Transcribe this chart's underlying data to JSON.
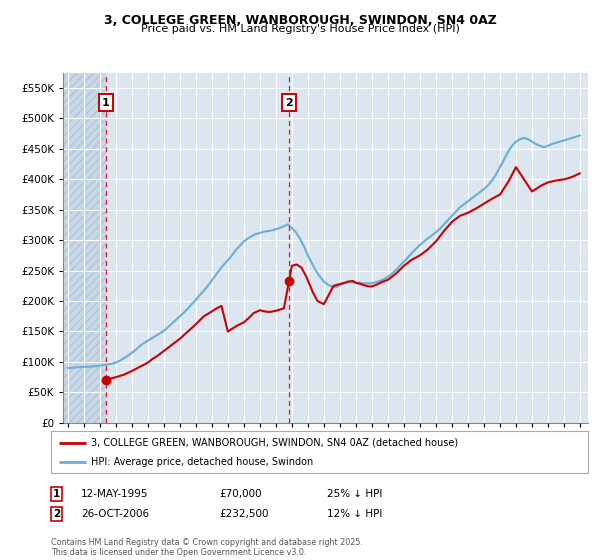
{
  "title1": "3, COLLEGE GREEN, WANBOROUGH, SWINDON, SN4 0AZ",
  "title2": "Price paid vs. HM Land Registry's House Price Index (HPI)",
  "bg_color": "#ffffff",
  "plot_bg_color": "#dce6f1",
  "grid_color": "#ffffff",
  "legend1": "3, COLLEGE GREEN, WANBOROUGH, SWINDON, SN4 0AZ (detached house)",
  "legend2": "HPI: Average price, detached house, Swindon",
  "annotation1_label": "1",
  "annotation1_date": "12-MAY-1995",
  "annotation1_price": "£70,000",
  "annotation1_hpi": "25% ↓ HPI",
  "annotation2_label": "2",
  "annotation2_date": "26-OCT-2006",
  "annotation2_price": "£232,500",
  "annotation2_hpi": "12% ↓ HPI",
  "footer": "Contains HM Land Registry data © Crown copyright and database right 2025.\nThis data is licensed under the Open Government Licence v3.0.",
  "yticks": [
    0,
    50000,
    100000,
    150000,
    200000,
    250000,
    300000,
    350000,
    400000,
    450000,
    500000,
    550000
  ],
  "ylim": [
    0,
    575000
  ],
  "xlim_start": 1992.7,
  "xlim_end": 2025.5,
  "sale1_x": 1995.36,
  "sale1_y": 70000,
  "sale2_x": 2006.82,
  "sale2_y": 232500,
  "hpi_line_color": "#6aaed6",
  "price_line_color": "#cc0000",
  "hpi_x": [
    1993,
    1993.25,
    1993.5,
    1993.75,
    1994,
    1994.25,
    1994.5,
    1994.75,
    1995,
    1995.25,
    1995.5,
    1995.75,
    1996,
    1996.25,
    1996.5,
    1996.75,
    1997,
    1997.25,
    1997.5,
    1997.75,
    1998,
    1998.25,
    1998.5,
    1998.75,
    1999,
    1999.25,
    1999.5,
    1999.75,
    2000,
    2000.25,
    2000.5,
    2000.75,
    2001,
    2001.25,
    2001.5,
    2001.75,
    2002,
    2002.25,
    2002.5,
    2002.75,
    2003,
    2003.25,
    2003.5,
    2003.75,
    2004,
    2004.25,
    2004.5,
    2004.75,
    2005,
    2005.25,
    2005.5,
    2005.75,
    2006,
    2006.25,
    2006.5,
    2006.75,
    2007,
    2007.25,
    2007.5,
    2007.75,
    2008,
    2008.25,
    2008.5,
    2008.75,
    2009,
    2009.25,
    2009.5,
    2009.75,
    2010,
    2010.25,
    2010.5,
    2010.75,
    2011,
    2011.25,
    2011.5,
    2011.75,
    2012,
    2012.25,
    2012.5,
    2012.75,
    2013,
    2013.25,
    2013.5,
    2013.75,
    2014,
    2014.25,
    2014.5,
    2014.75,
    2015,
    2015.25,
    2015.5,
    2015.75,
    2016,
    2016.25,
    2016.5,
    2016.75,
    2017,
    2017.25,
    2017.5,
    2017.75,
    2018,
    2018.25,
    2018.5,
    2018.75,
    2019,
    2019.25,
    2019.5,
    2019.75,
    2020,
    2020.25,
    2020.5,
    2020.75,
    2021,
    2021.25,
    2021.5,
    2021.75,
    2022,
    2022.25,
    2022.5,
    2022.75,
    2023,
    2023.25,
    2023.5,
    2023.75,
    2024,
    2024.25,
    2024.5,
    2024.75,
    2025
  ],
  "hpi_y": [
    90000,
    90500,
    91000,
    91500,
    92000,
    92000,
    92500,
    93000,
    94000,
    95000,
    96000,
    97000,
    99000,
    102000,
    106000,
    110000,
    115000,
    120000,
    126000,
    131000,
    135000,
    139000,
    143000,
    147000,
    151000,
    157000,
    163000,
    169000,
    175000,
    181000,
    188000,
    195000,
    202000,
    210000,
    217000,
    225000,
    234000,
    243000,
    252000,
    260000,
    267000,
    275000,
    284000,
    291000,
    298000,
    303000,
    307000,
    310000,
    312000,
    314000,
    315000,
    316000,
    318000,
    320000,
    323000,
    326000,
    320000,
    313000,
    303000,
    290000,
    275000,
    262000,
    250000,
    240000,
    232000,
    227000,
    224000,
    223000,
    226000,
    229000,
    231000,
    231000,
    230000,
    230000,
    229000,
    229000,
    229000,
    231000,
    233000,
    236000,
    240000,
    245000,
    251000,
    258000,
    265000,
    272000,
    279000,
    286000,
    292000,
    298000,
    303000,
    308000,
    313000,
    319000,
    326000,
    333000,
    340000,
    347000,
    354000,
    359000,
    364000,
    369000,
    374000,
    379000,
    384000,
    390000,
    398000,
    408000,
    420000,
    432000,
    445000,
    455000,
    462000,
    466000,
    468000,
    466000,
    462000,
    458000,
    455000,
    453000,
    455000,
    458000,
    460000,
    462000,
    464000,
    466000,
    468000,
    470000,
    472000
  ],
  "price_x": [
    1995.36,
    1995.6,
    1996.0,
    1996.5,
    1997.0,
    1997.5,
    1997.8,
    1998.0,
    1998.3,
    1998.6,
    1999.0,
    1999.5,
    2000.0,
    2000.5,
    2001.0,
    2001.5,
    2002.0,
    2002.3,
    2002.6,
    2003.0,
    2003.3,
    2003.6,
    2004.0,
    2004.3,
    2004.6,
    2005.0,
    2005.3,
    2005.6,
    2006.0,
    2006.5,
    2006.82,
    2007.0,
    2007.3,
    2007.6,
    2007.9,
    2008.3,
    2008.6,
    2009.0,
    2009.3,
    2009.6,
    2010.0,
    2010.3,
    2010.5,
    2010.8,
    2011.0,
    2011.3,
    2011.5,
    2011.8,
    2012.0,
    2012.3,
    2012.6,
    2013.0,
    2013.5,
    2014.0,
    2014.5,
    2015.0,
    2015.5,
    2016.0,
    2016.5,
    2017.0,
    2017.5,
    2018.0,
    2018.5,
    2019.0,
    2019.5,
    2020.0,
    2020.5,
    2021.0,
    2021.5,
    2022.0,
    2022.3,
    2022.6,
    2023.0,
    2023.5,
    2024.0,
    2024.3,
    2024.6,
    2025.0
  ],
  "price_y": [
    70000,
    72000,
    75000,
    79000,
    85000,
    92000,
    96000,
    99000,
    105000,
    110000,
    118000,
    128000,
    138000,
    150000,
    162000,
    175000,
    183000,
    188000,
    192000,
    150000,
    155000,
    160000,
    165000,
    172000,
    180000,
    185000,
    183000,
    182000,
    184000,
    188000,
    232500,
    258000,
    260000,
    255000,
    240000,
    215000,
    200000,
    195000,
    210000,
    225000,
    228000,
    230000,
    232000,
    233000,
    230000,
    228000,
    226000,
    224000,
    224000,
    227000,
    231000,
    235000,
    245000,
    258000,
    268000,
    275000,
    285000,
    298000,
    315000,
    330000,
    340000,
    345000,
    352000,
    360000,
    368000,
    375000,
    395000,
    420000,
    400000,
    380000,
    385000,
    390000,
    395000,
    398000,
    400000,
    402000,
    405000,
    410000
  ]
}
